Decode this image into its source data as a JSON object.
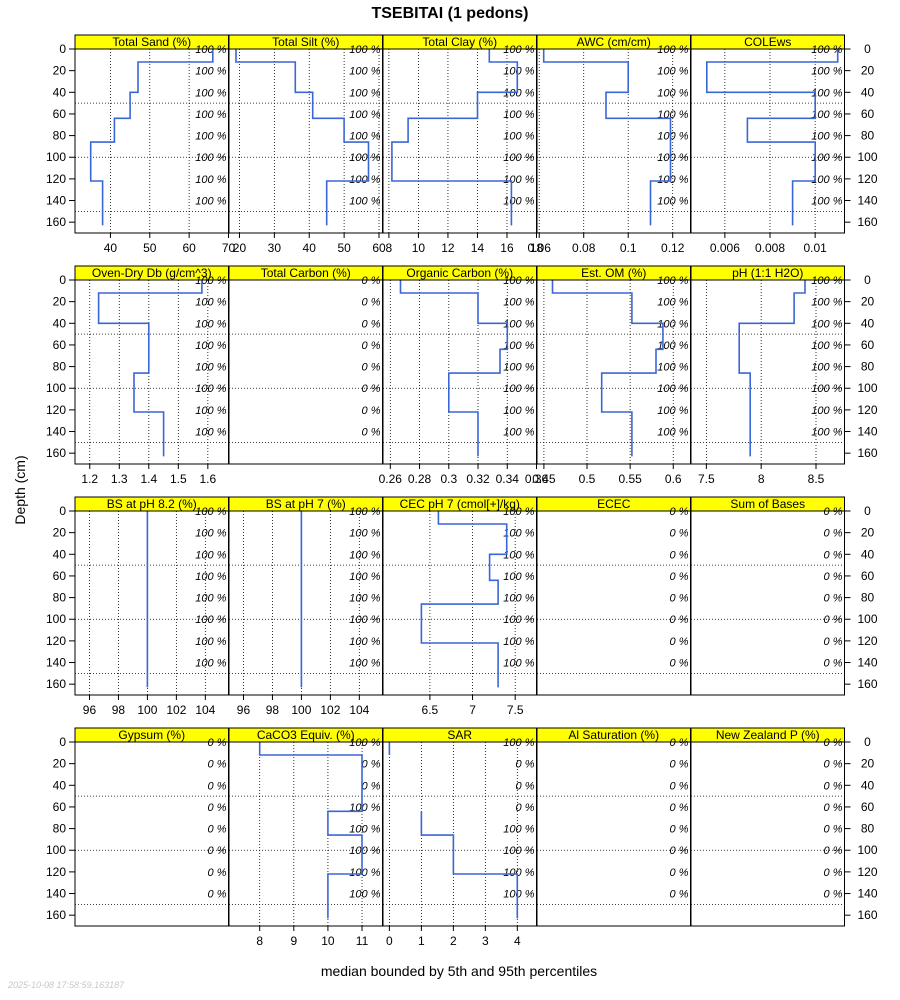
{
  "title": "TSEBITAI (1 pedons)",
  "xlabel": "median bounded by 5th and 95th percentiles",
  "ylabel": "Depth (cm)",
  "timestamp": "2025-10-08 17:58:59.163187",
  "colors": {
    "strip": "#ffff00",
    "line": "#3a67d6"
  },
  "chart_data": {
    "type": "line",
    "depth_range": [
      0,
      170
    ],
    "depth_ticks": [
      0,
      20,
      40,
      60,
      80,
      100,
      120,
      140,
      160
    ],
    "label_depths": [
      0,
      20,
      40,
      60,
      80,
      100,
      120,
      140
    ],
    "panels": [
      {
        "name": "Total Sand (%)",
        "xlim": [
          31,
          70
        ],
        "ticks": [
          40,
          50,
          60,
          70
        ],
        "percent": "100 %",
        "points": [
          [
            66,
            0
          ],
          [
            66,
            12
          ],
          [
            47,
            12
          ],
          [
            47,
            40
          ],
          [
            45,
            40
          ],
          [
            45,
            45
          ],
          [
            45,
            45
          ],
          [
            45,
            64
          ],
          [
            41,
            64
          ],
          [
            41,
            86
          ],
          [
            35,
            86
          ],
          [
            35,
            122
          ],
          [
            38,
            122
          ],
          [
            38,
            163
          ]
        ]
      },
      {
        "name": "Total Silt (%)",
        "xlim": [
          17,
          61
        ],
        "ticks": [
          20,
          30,
          40,
          50,
          60
        ],
        "percent": "100 %",
        "points": [
          [
            19,
            0
          ],
          [
            19,
            12
          ],
          [
            36,
            12
          ],
          [
            36,
            40
          ],
          [
            41,
            40
          ],
          [
            41,
            64
          ],
          [
            50,
            64
          ],
          [
            50,
            86
          ],
          [
            57,
            86
          ],
          [
            57,
            122
          ],
          [
            45,
            122
          ],
          [
            45,
            163
          ]
        ]
      },
      {
        "name": "Total Clay (%)",
        "xlim": [
          7.6,
          18
        ],
        "ticks": [
          8,
          10,
          12,
          14,
          16,
          18
        ],
        "percent": "100 %",
        "points": [
          [
            14.8,
            0
          ],
          [
            14.8,
            12
          ],
          [
            16.7,
            12
          ],
          [
            16.7,
            40
          ],
          [
            14,
            40
          ],
          [
            14,
            64
          ],
          [
            9.3,
            64
          ],
          [
            9.3,
            86
          ],
          [
            8.2,
            86
          ],
          [
            8.2,
            122
          ],
          [
            16.3,
            122
          ],
          [
            16.3,
            163
          ]
        ]
      },
      {
        "name": "AWC (cm/cm)",
        "xlim": [
          0.059,
          0.128
        ],
        "ticks": [
          0.06,
          0.08,
          0.1,
          0.12
        ],
        "percent": "100 %",
        "points": [
          [
            0.062,
            0
          ],
          [
            0.062,
            12
          ],
          [
            0.1,
            12
          ],
          [
            0.1,
            40
          ],
          [
            0.09,
            40
          ],
          [
            0.09,
            64
          ],
          [
            0.119,
            64
          ],
          [
            0.119,
            122
          ],
          [
            0.11,
            122
          ],
          [
            0.11,
            163
          ]
        ]
      },
      {
        "name": "COLEws",
        "xlim": [
          0.0045,
          0.0113
        ],
        "ticks": [
          0.006,
          0.008,
          0.01
        ],
        "percent": "100 %",
        "points": [
          [
            0.011,
            0
          ],
          [
            0.011,
            12
          ],
          [
            0.0052,
            12
          ],
          [
            0.0052,
            40
          ],
          [
            0.01,
            40
          ],
          [
            0.01,
            64
          ],
          [
            0.007,
            64
          ],
          [
            0.007,
            86
          ],
          [
            0.01,
            86
          ],
          [
            0.01,
            122
          ],
          [
            0.009,
            122
          ],
          [
            0.009,
            163
          ]
        ]
      },
      {
        "name": "Oven-Dry Db (g/cm^3)",
        "xlim": [
          1.15,
          1.67
        ],
        "ticks": [
          1.2,
          1.3,
          1.4,
          1.5,
          1.6
        ],
        "percent": "100 %",
        "points": [
          [
            1.58,
            0
          ],
          [
            1.58,
            12
          ],
          [
            1.23,
            12
          ],
          [
            1.23,
            40
          ],
          [
            1.4,
            40
          ],
          [
            1.4,
            86
          ],
          [
            1.35,
            86
          ],
          [
            1.35,
            122
          ],
          [
            1.45,
            122
          ],
          [
            1.45,
            163
          ]
        ]
      },
      {
        "name": "Total Carbon (%)",
        "xlim": [
          0,
          1
        ],
        "ticks": [],
        "percent": "0 %",
        "points": []
      },
      {
        "name": "Organic Carbon (%)",
        "xlim": [
          0.255,
          0.36
        ],
        "ticks": [
          0.26,
          0.28,
          0.3,
          0.32,
          0.34,
          0.36
        ],
        "percent": "100 %",
        "points": [
          [
            0.267,
            0
          ],
          [
            0.267,
            12
          ],
          [
            0.32,
            12
          ],
          [
            0.32,
            40
          ],
          [
            0.34,
            40
          ],
          [
            0.34,
            64
          ],
          [
            0.335,
            64
          ],
          [
            0.335,
            86
          ],
          [
            0.3,
            86
          ],
          [
            0.3,
            122
          ],
          [
            0.32,
            122
          ],
          [
            0.32,
            163
          ]
        ]
      },
      {
        "name": "Est. OM (%)",
        "xlim": [
          0.442,
          0.62
        ],
        "ticks": [
          0.45,
          0.5,
          0.55,
          0.6
        ],
        "percent": "100 %",
        "points": [
          [
            0.46,
            0
          ],
          [
            0.46,
            12
          ],
          [
            0.552,
            12
          ],
          [
            0.552,
            40
          ],
          [
            0.588,
            40
          ],
          [
            0.588,
            64
          ],
          [
            0.58,
            64
          ],
          [
            0.58,
            86
          ],
          [
            0.517,
            86
          ],
          [
            0.517,
            122
          ],
          [
            0.552,
            122
          ],
          [
            0.552,
            163
          ]
        ]
      },
      {
        "name": "pH (1:1 H2O)",
        "xlim": [
          7.36,
          8.76
        ],
        "ticks": [
          7.5,
          8.0,
          8.5
        ],
        "percent": "100 %",
        "points": [
          [
            8.4,
            0
          ],
          [
            8.4,
            12
          ],
          [
            8.3,
            12
          ],
          [
            8.3,
            40
          ],
          [
            7.8,
            40
          ],
          [
            7.8,
            86
          ],
          [
            7.9,
            86
          ],
          [
            7.9,
            163
          ]
        ]
      },
      {
        "name": "BS at pH 8.2 (%)",
        "xlim": [
          95,
          105.6
        ],
        "ticks": [
          96,
          98,
          100,
          102,
          104
        ],
        "percent": "100 %",
        "points": [
          [
            100,
            0
          ],
          [
            100,
            163
          ]
        ]
      },
      {
        "name": "BS at pH 7 (%)",
        "xlim": [
          95,
          105.6
        ],
        "ticks": [
          96,
          98,
          100,
          102,
          104
        ],
        "percent": "100 %",
        "points": [
          [
            100,
            0
          ],
          [
            100,
            163
          ]
        ]
      },
      {
        "name": "CEC pH 7 (cmol[+]/kg)",
        "xlim": [
          5.95,
          7.75
        ],
        "ticks": [
          6.5,
          7.0,
          7.5
        ],
        "percent": "100 %",
        "points": [
          [
            6.6,
            0
          ],
          [
            6.6,
            12
          ],
          [
            7.4,
            12
          ],
          [
            7.4,
            40
          ],
          [
            7.2,
            40
          ],
          [
            7.2,
            64
          ],
          [
            7.3,
            64
          ],
          [
            7.3,
            86
          ],
          [
            6.4,
            86
          ],
          [
            6.4,
            122
          ],
          [
            7.3,
            122
          ],
          [
            7.3,
            163
          ]
        ]
      },
      {
        "name": "ECEC",
        "xlim": [
          0,
          1
        ],
        "ticks": [],
        "percent": "0 %",
        "points": []
      },
      {
        "name": "Sum of Bases",
        "xlim": [
          0,
          1
        ],
        "ticks": [],
        "percent": "0 %",
        "points": []
      },
      {
        "name": "Gypsum (%)",
        "xlim": [
          0,
          1
        ],
        "ticks": [],
        "percent": "0 %",
        "points": []
      },
      {
        "name": "CaCO3 Equiv. (%)",
        "xlim": [
          7.1,
          11.6
        ],
        "ticks": [
          8,
          9,
          10,
          11
        ],
        "percent": "100 %",
        "percent_pattern": [
          "100 %",
          "0 %",
          "0 %",
          "100 %",
          "100 %",
          "100 %",
          "100 %",
          "100 %"
        ],
        "points": [
          [
            8,
            0
          ],
          [
            8,
            12
          ],
          [
            11,
            12
          ],
          [
            11,
            64
          ],
          [
            10,
            64
          ],
          [
            10,
            86
          ],
          [
            11,
            86
          ],
          [
            11,
            122
          ],
          [
            10,
            122
          ],
          [
            10,
            163
          ]
        ]
      },
      {
        "name": "SAR",
        "xlim": [
          -0.2,
          4.6
        ],
        "ticks": [
          0,
          1,
          2,
          3,
          4
        ],
        "percent": "100 %",
        "percent_pattern": [
          "100 %",
          "0 %",
          "0 %",
          "0 %",
          "100 %",
          "100 %",
          "100 %",
          "100 %"
        ],
        "segments": [
          [
            [
              0,
              0
            ],
            [
              0,
              12
            ]
          ],
          [
            [
              1,
              64
            ],
            [
              1,
              86
            ],
            [
              2,
              86
            ],
            [
              2,
              122
            ],
            [
              4,
              122
            ],
            [
              4,
              163
            ]
          ]
        ]
      },
      {
        "name": "Al Saturation (%)",
        "xlim": [
          0,
          1
        ],
        "ticks": [],
        "percent": "0 %",
        "points": []
      },
      {
        "name": "New Zealand P (%)",
        "xlim": [
          0,
          1
        ],
        "ticks": [],
        "percent": "0 %",
        "points": []
      }
    ]
  }
}
